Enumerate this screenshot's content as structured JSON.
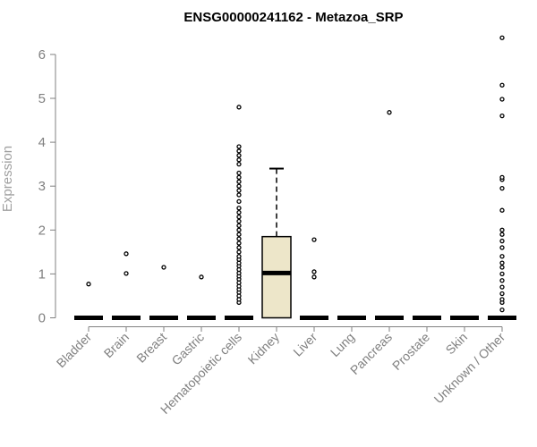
{
  "chart_data": {
    "type": "box",
    "title": "ENSG00000241162 - Metazoa_SRP",
    "ylabel": "Expression",
    "xlabel": "",
    "ylim": [
      0,
      6.5
    ],
    "yticks": [
      "0",
      "1",
      "2",
      "3",
      "4",
      "5",
      "6"
    ],
    "categories": [
      "Bladder",
      "Brain",
      "Breast",
      "Gastric",
      "Hematopoietic cells",
      "Kidney",
      "Liver",
      "Lung",
      "Pancreas",
      "Prostate",
      "Skin",
      "Unknown / Other"
    ],
    "box_color": "#ede6c9",
    "series": [
      {
        "category": "Bladder",
        "min": 0,
        "q1": 0,
        "median": 0,
        "q3": 0,
        "max": 0,
        "outliers": [
          0.77
        ]
      },
      {
        "category": "Brain",
        "min": 0,
        "q1": 0,
        "median": 0,
        "q3": 0,
        "max": 0,
        "outliers": [
          1.01,
          1.46
        ]
      },
      {
        "category": "Breast",
        "min": 0,
        "q1": 0,
        "median": 0,
        "q3": 0,
        "max": 0,
        "outliers": [
          1.15
        ]
      },
      {
        "category": "Gastric",
        "min": 0,
        "q1": 0,
        "median": 0,
        "q3": 0,
        "max": 0,
        "outliers": [
          0.93
        ]
      },
      {
        "category": "Hematopoietic cells",
        "min": 0,
        "q1": 0,
        "median": 0,
        "q3": 0,
        "max": 0,
        "outliers": [
          0.35,
          0.42,
          0.5,
          0.58,
          0.65,
          0.72,
          0.8,
          0.88,
          0.95,
          1.02,
          1.1,
          1.18,
          1.25,
          1.33,
          1.4,
          1.5,
          1.6,
          1.7,
          1.8,
          1.9,
          2.0,
          2.1,
          2.2,
          2.3,
          2.4,
          2.5,
          2.65,
          2.8,
          2.9,
          3.0,
          3.1,
          3.2,
          3.3,
          3.5,
          3.6,
          3.7,
          3.8,
          3.9,
          4.8
        ]
      },
      {
        "category": "Kidney",
        "min": 0,
        "q1": 0,
        "median": 1.02,
        "q3": 1.85,
        "max": 3.4,
        "outliers": []
      },
      {
        "category": "Liver",
        "min": 0,
        "q1": 0,
        "median": 0,
        "q3": 0,
        "max": 0,
        "outliers": [
          0.93,
          1.05,
          1.78
        ]
      },
      {
        "category": "Lung",
        "min": 0,
        "q1": 0,
        "median": 0,
        "q3": 0,
        "max": 0,
        "outliers": []
      },
      {
        "category": "Pancreas",
        "min": 0,
        "q1": 0,
        "median": 0,
        "q3": 0,
        "max": 0,
        "outliers": [
          4.68
        ]
      },
      {
        "category": "Prostate",
        "min": 0,
        "q1": 0,
        "median": 0,
        "q3": 0,
        "max": 0,
        "outliers": []
      },
      {
        "category": "Skin",
        "min": 0,
        "q1": 0,
        "median": 0,
        "q3": 0,
        "max": 0,
        "outliers": []
      },
      {
        "category": "Unknown / Other",
        "min": 0,
        "q1": 0,
        "median": 0,
        "q3": 0,
        "max": 0,
        "outliers": [
          0.18,
          0.35,
          0.42,
          0.55,
          0.7,
          0.85,
          1.0,
          1.15,
          1.25,
          1.4,
          1.6,
          1.75,
          1.9,
          2.0,
          2.45,
          2.95,
          3.15,
          3.2,
          4.6,
          4.98,
          5.3,
          6.38
        ]
      }
    ]
  }
}
